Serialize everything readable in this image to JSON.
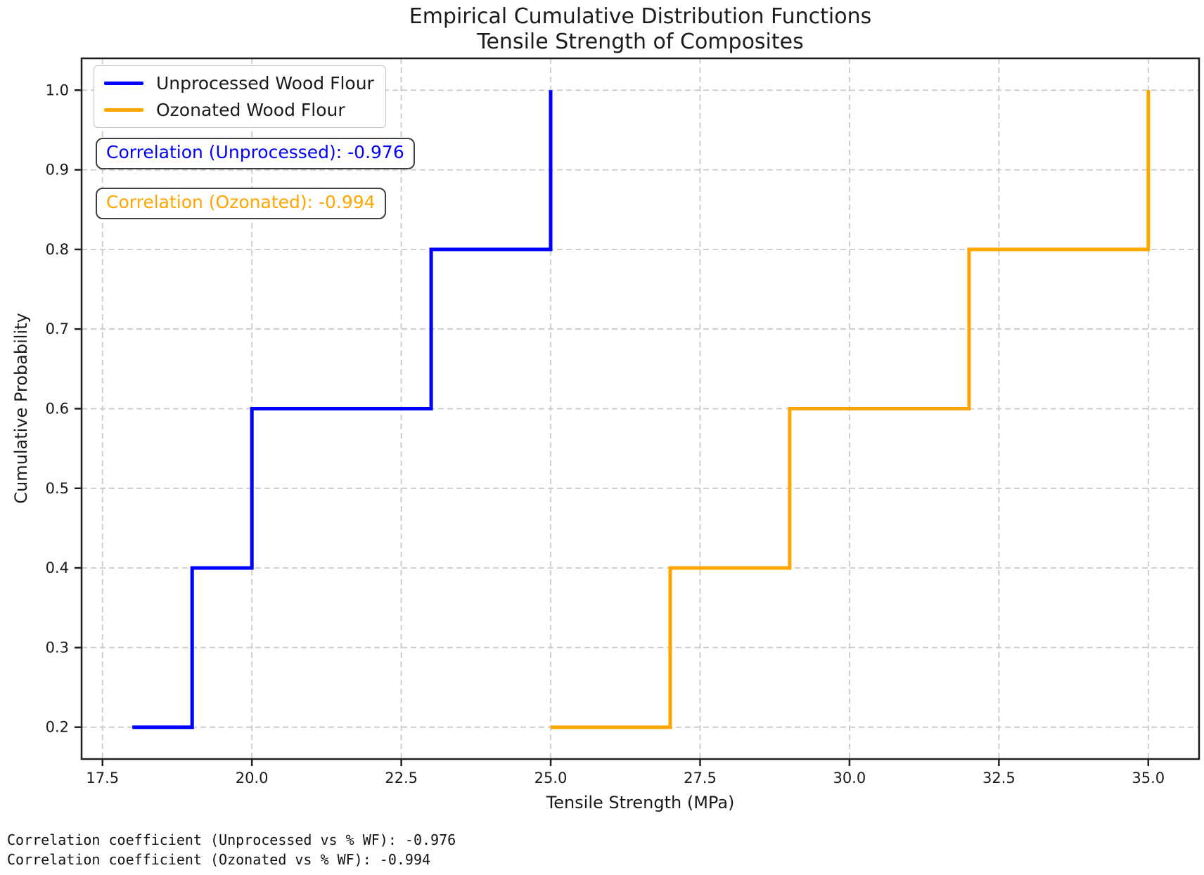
{
  "title": {
    "line1": "Empirical Cumulative Distribution Functions",
    "line2": "Tensile Strength of Composites"
  },
  "axes": {
    "xlabel": "Tensile Strength (MPa)",
    "ylabel": "Cumulative Probability"
  },
  "legend": {
    "items": [
      {
        "label": "Unprocessed Wood Flour",
        "color": "#0000ff"
      },
      {
        "label": "Ozonated Wood Flour",
        "color": "#ffa500"
      }
    ]
  },
  "annotations": [
    {
      "text": "Correlation (Unprocessed): -0.976",
      "color": "#0000ff"
    },
    {
      "text": "Correlation (Ozonated): -0.994",
      "color": "#ffa500"
    }
  ],
  "footer": {
    "lines": [
      "Correlation coefficient (Unprocessed vs % WF): -0.976",
      "Correlation coefficient (Ozonated vs % WF): -0.994"
    ]
  },
  "chart_data": {
    "type": "line",
    "subtype": "ecdf_step",
    "step_where": "post",
    "title": "Empirical Cumulative Distribution Functions — Tensile Strength of Composites",
    "xlabel": "Tensile Strength (MPa)",
    "ylabel": "Cumulative Probability",
    "series": [
      {
        "name": "Unprocessed Wood Flour",
        "color": "#0000ff",
        "x": [
          18,
          19,
          20,
          23,
          25
        ],
        "y": [
          0.2,
          0.4,
          0.6,
          0.8,
          1.0
        ]
      },
      {
        "name": "Ozonated Wood Flour",
        "color": "#ffa500",
        "x": [
          25,
          27,
          29,
          32,
          35
        ],
        "y": [
          0.2,
          0.4,
          0.6,
          0.8,
          1.0
        ]
      }
    ],
    "correlations": {
      "unprocessed_vs_pct_wf": -0.976,
      "ozonated_vs_pct_wf": -0.994
    },
    "xlim": [
      17.15,
      35.85
    ],
    "ylim": [
      0.16,
      1.04
    ],
    "xticks": [
      17.5,
      20.0,
      22.5,
      25.0,
      27.5,
      30.0,
      32.5,
      35.0
    ],
    "xtick_labels": [
      "17.5",
      "20.0",
      "22.5",
      "25.0",
      "27.5",
      "30.0",
      "32.5",
      "35.0"
    ],
    "yticks": [
      0.2,
      0.3,
      0.4,
      0.5,
      0.6,
      0.7,
      0.8,
      0.9,
      1.0
    ],
    "ytick_labels": [
      "0.2",
      "0.3",
      "0.4",
      "0.5",
      "0.6",
      "0.7",
      "0.8",
      "0.9",
      "1.0"
    ],
    "grid": true,
    "legend_position": "upper left"
  }
}
